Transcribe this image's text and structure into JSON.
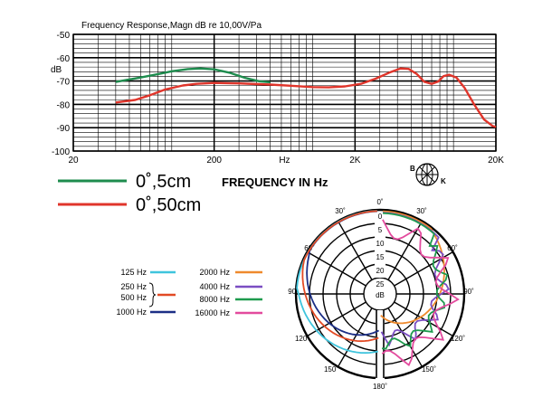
{
  "chart_data": [
    {
      "type": "line",
      "title": "Frequency Response,Magn dB re 10,00V/Pa",
      "ylabel": "dB",
      "xlabel": "FREQUENCY IN Hz",
      "x_scale": "log",
      "xlim": [
        20,
        20000
      ],
      "ylim": [
        -100,
        -50
      ],
      "grid": true,
      "x_tick_labels": [
        {
          "value": 20,
          "label": "20"
        },
        {
          "value": 200,
          "label": "200"
        },
        {
          "value": 632,
          "label": "Hz"
        },
        {
          "value": 2000,
          "label": "2K"
        },
        {
          "value": 20000,
          "label": "20K"
        }
      ],
      "y_tick_labels": [
        {
          "value": -50,
          "label": "-50"
        },
        {
          "value": -60,
          "label": "-60"
        },
        {
          "value": -70,
          "label": "-70"
        },
        {
          "value": -80,
          "label": "-80"
        },
        {
          "value": -90,
          "label": "-90"
        },
        {
          "value": -100,
          "label": "-100"
        }
      ],
      "series": [
        {
          "name": "0˚,5cm",
          "color": "#1e8c4e",
          "points": [
            [
              40,
              -70.4
            ],
            [
              60,
              -68.5
            ],
            [
              80,
              -67
            ],
            [
              100,
              -65.8
            ],
            [
              130,
              -64.9
            ],
            [
              160,
              -64.6
            ],
            [
              200,
              -65
            ],
            [
              260,
              -66.5
            ],
            [
              330,
              -68.6
            ],
            [
              420,
              -70.1
            ],
            [
              500,
              -70.5
            ]
          ]
        },
        {
          "name": "0˚,50cm",
          "color": "#e0352b",
          "points": [
            [
              40,
              -79.2
            ],
            [
              55,
              -78.1
            ],
            [
              70,
              -76.1
            ],
            [
              90,
              -73.6
            ],
            [
              120,
              -71.9
            ],
            [
              150,
              -71.2
            ],
            [
              200,
              -70.8
            ],
            [
              300,
              -71
            ],
            [
              400,
              -71.3
            ],
            [
              500,
              -71.5
            ],
            [
              700,
              -72
            ],
            [
              1000,
              -72.6
            ],
            [
              1300,
              -72.7
            ],
            [
              1700,
              -72.3
            ],
            [
              2200,
              -71.2
            ],
            [
              2800,
              -69
            ],
            [
              3500,
              -66.4
            ],
            [
              4200,
              -64.6
            ],
            [
              4800,
              -64.8
            ],
            [
              5500,
              -67
            ],
            [
              6200,
              -70.3
            ],
            [
              7000,
              -71.2
            ],
            [
              7800,
              -70.2
            ],
            [
              8500,
              -67.9
            ],
            [
              9300,
              -67.3
            ],
            [
              10500,
              -68.5
            ],
            [
              12000,
              -73
            ],
            [
              14000,
              -80
            ],
            [
              16500,
              -86.5
            ],
            [
              19000,
              -89.3
            ],
            [
              20000,
              -89.7
            ]
          ]
        }
      ],
      "legend": {
        "placement": "bottom-left"
      },
      "logo": {
        "left": "B",
        "right": "K"
      }
    },
    {
      "type": "polar",
      "radial_unit": "dB",
      "radial_ticks": [
        "0",
        "5",
        "10",
        "15",
        "20",
        "25"
      ],
      "angle_labels": [
        "0˚",
        "30˚",
        "60˚",
        "90˚",
        "120˚",
        "150˚",
        "180˚",
        "150˚",
        "120˚",
        "90˚",
        "60˚",
        "30˚"
      ],
      "legend": [
        {
          "label": "125 Hz",
          "color": "#3fc4dd"
        },
        {
          "label": "250 Hz",
          "color": "#e24a24"
        },
        {
          "label": "500 Hz",
          "color": "#e24a24"
        },
        {
          "label": "1000 Hz",
          "color": "#1c2f86"
        },
        {
          "label": "2000 Hz",
          "color": "#ef8a2d"
        },
        {
          "label": "4000 Hz",
          "color": "#7b4ec2"
        },
        {
          "label": "8000 Hz",
          "color": "#1e9b4e"
        },
        {
          "label": "16000 Hz",
          "color": "#e34b9e"
        }
      ]
    }
  ]
}
